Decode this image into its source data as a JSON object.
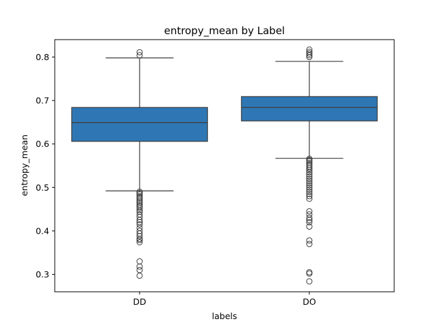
{
  "chart_data": {
    "type": "box",
    "title": "entropy_mean by Label",
    "xlabel": "labels",
    "ylabel": "entropy_mean",
    "ylim": [
      0.26,
      0.84
    ],
    "yticks": [
      0.3,
      0.4,
      0.5,
      0.6,
      0.7,
      0.8
    ],
    "ytick_labels": [
      "0.3",
      "0.4",
      "0.5",
      "0.6",
      "0.7",
      "0.8"
    ],
    "categories": [
      "DD",
      "DO"
    ],
    "color": "#2f77b4",
    "edge_color": "#3b3b3b",
    "boxes": [
      {
        "label": "DD",
        "whisker_low": 0.492,
        "q1": 0.606,
        "median": 0.649,
        "q3": 0.684,
        "whisker_high": 0.798,
        "outliers": [
          0.297,
          0.31,
          0.318,
          0.33,
          0.374,
          0.379,
          0.382,
          0.388,
          0.394,
          0.4,
          0.407,
          0.415,
          0.42,
          0.425,
          0.432,
          0.438,
          0.444,
          0.448,
          0.453,
          0.457,
          0.461,
          0.465,
          0.468,
          0.472,
          0.476,
          0.48,
          0.484,
          0.487,
          0.49,
          0.804,
          0.811
        ]
      },
      {
        "label": "DO",
        "whisker_low": 0.567,
        "q1": 0.653,
        "median": 0.684,
        "q3": 0.709,
        "whisker_high": 0.79,
        "outliers": [
          0.284,
          0.302,
          0.305,
          0.37,
          0.378,
          0.41,
          0.42,
          0.425,
          0.43,
          0.438,
          0.445,
          0.474,
          0.48,
          0.485,
          0.49,
          0.495,
          0.5,
          0.505,
          0.51,
          0.515,
          0.52,
          0.525,
          0.53,
          0.535,
          0.54,
          0.544,
          0.548,
          0.552,
          0.556,
          0.56,
          0.563,
          0.566,
          0.8,
          0.804,
          0.808,
          0.812,
          0.817
        ]
      }
    ]
  }
}
